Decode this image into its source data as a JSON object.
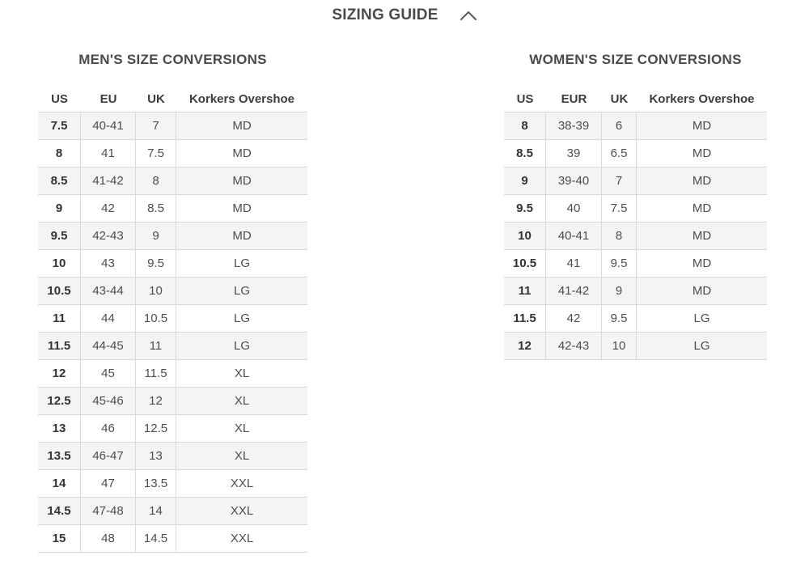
{
  "header": {
    "title": "SIZING GUIDE",
    "collapse_icon": "chevron-up-icon"
  },
  "mens": {
    "title": "MEN'S SIZE CONVERSIONS",
    "columns": [
      "US",
      "EU",
      "UK",
      "Korkers Overshoe"
    ],
    "rows": [
      [
        "7.5",
        "40-41",
        "7",
        "MD"
      ],
      [
        "8",
        "41",
        "7.5",
        "MD"
      ],
      [
        "8.5",
        "41-42",
        "8",
        "MD"
      ],
      [
        "9",
        "42",
        "8.5",
        "MD"
      ],
      [
        "9.5",
        "42-43",
        "9",
        "MD"
      ],
      [
        "10",
        "43",
        "9.5",
        "LG"
      ],
      [
        "10.5",
        "43-44",
        "10",
        "LG"
      ],
      [
        "11",
        "44",
        "10.5",
        "LG"
      ],
      [
        "11.5",
        "44-45",
        "11",
        "LG"
      ],
      [
        "12",
        "45",
        "11.5",
        "XL"
      ],
      [
        "12.5",
        "45-46",
        "12",
        "XL"
      ],
      [
        "13",
        "46",
        "12.5",
        "XL"
      ],
      [
        "13.5",
        "46-47",
        "13",
        "XL"
      ],
      [
        "14",
        "47",
        "13.5",
        "XXL"
      ],
      [
        "14.5",
        "47-48",
        "14",
        "XXL"
      ],
      [
        "15",
        "48",
        "14.5",
        "XXL"
      ]
    ]
  },
  "womens": {
    "title": "WOMEN'S SIZE CONVERSIONS",
    "columns": [
      "US",
      "EUR",
      "UK",
      "Korkers Overshoe"
    ],
    "rows": [
      [
        "8",
        "38-39",
        "6",
        "MD"
      ],
      [
        "8.5",
        "39",
        "6.5",
        "MD"
      ],
      [
        "9",
        "39-40",
        "7",
        "MD"
      ],
      [
        "9.5",
        "40",
        "7.5",
        "MD"
      ],
      [
        "10",
        "40-41",
        "8",
        "MD"
      ],
      [
        "10.5",
        "41",
        "9.5",
        "MD"
      ],
      [
        "11",
        "41-42",
        "9",
        "MD"
      ],
      [
        "11.5",
        "42",
        "9.5",
        "LG"
      ],
      [
        "12",
        "42-43",
        "10",
        "LG"
      ]
    ]
  },
  "colors": {
    "row_shade": "#f4f4f4",
    "border": "#d9d9d9",
    "text": "#4d4d4d",
    "heading": "#4a4a4a"
  }
}
